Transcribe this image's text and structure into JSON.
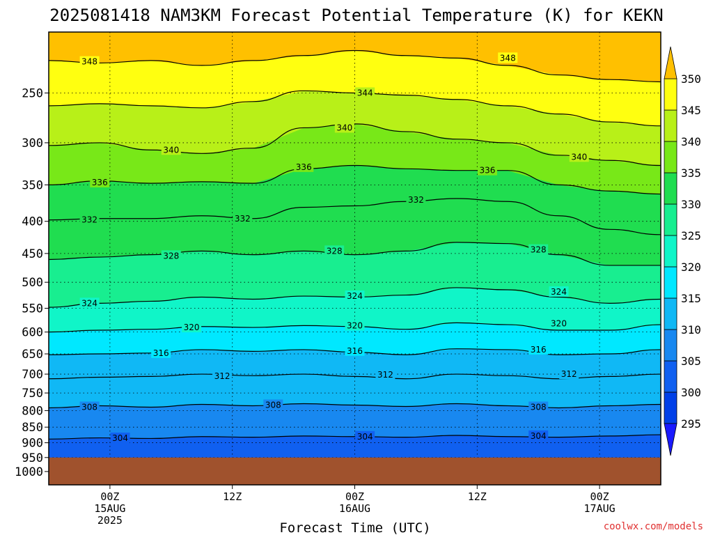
{
  "chart_data": {
    "type": "heatmap",
    "title": "2025081418 NAM3KM Forecast Potential Temperature (K) for KEKN",
    "xlabel": "Forecast Time (UTC)",
    "ylabel": "",
    "credit": "coolwx.com/models",
    "x_ticks": [
      {
        "hours": 6,
        "lines": [
          "00Z",
          "15AUG",
          "2025"
        ]
      },
      {
        "hours": 18,
        "lines": [
          "12Z"
        ]
      },
      {
        "hours": 30,
        "lines": [
          "00Z",
          "16AUG"
        ]
      },
      {
        "hours": 42,
        "lines": [
          "12Z"
        ]
      },
      {
        "hours": 54,
        "lines": [
          "00Z",
          "17AUG"
        ]
      }
    ],
    "x_range_hours": [
      0,
      60
    ],
    "y_ticks": [
      250,
      300,
      350,
      400,
      450,
      500,
      550,
      600,
      650,
      700,
      750,
      800,
      850,
      900,
      950,
      1000
    ],
    "y_scale": "log pressure (hPa), inverted",
    "y_range_hPa": [
      1050,
      200
    ],
    "ground_level_hPa": 950,
    "ground_color": "#a0522d",
    "colorbar": {
      "levels": [
        295,
        300,
        305,
        310,
        315,
        320,
        325,
        330,
        335,
        340,
        345,
        350
      ],
      "colors": [
        "#1a1aff",
        "#0040e8",
        "#1060f0",
        "#1888f0",
        "#10b8f5",
        "#00e8ff",
        "#10f5c8",
        "#18ee90",
        "#20dd50",
        "#78e818",
        "#b8f018",
        "#ffff10",
        "#ffc000"
      ]
    },
    "contours": [
      {
        "value": 304,
        "p": [
          888,
          884,
          886,
          880,
          882,
          878,
          880,
          882,
          876,
          880,
          882,
          878,
          874
        ]
      },
      {
        "value": 308,
        "p": [
          792,
          786,
          790,
          782,
          786,
          780,
          784,
          788,
          780,
          786,
          792,
          786,
          782
        ]
      },
      {
        "value": 312,
        "p": [
          712,
          708,
          706,
          700,
          704,
          700,
          706,
          712,
          700,
          704,
          712,
          706,
          700
        ]
      },
      {
        "value": 316,
        "p": [
          652,
          650,
          648,
          640,
          644,
          640,
          646,
          652,
          638,
          640,
          652,
          650,
          640
        ]
      },
      {
        "value": 320,
        "p": [
          600,
          596,
          594,
          588,
          590,
          586,
          588,
          594,
          580,
          584,
          596,
          596,
          584
        ]
      },
      {
        "value": 324,
        "p": [
          548,
          540,
          536,
          528,
          532,
          526,
          528,
          524,
          510,
          514,
          528,
          540,
          532
        ]
      },
      {
        "value": 328,
        "p": [
          460,
          456,
          452,
          446,
          452,
          446,
          452,
          446,
          432,
          434,
          452,
          470,
          470
        ]
      },
      {
        "value": 332,
        "p": [
          398,
          396,
          396,
          392,
          396,
          380,
          378,
          372,
          368,
          372,
          392,
          412,
          420
        ]
      },
      {
        "value": 336,
        "p": [
          350,
          345,
          348,
          346,
          348,
          330,
          326,
          330,
          332,
          332,
          350,
          358,
          362
        ]
      },
      {
        "value": 340,
        "p": [
          303,
          300,
          308,
          312,
          306,
          284,
          280,
          288,
          296,
          300,
          314,
          320,
          326
        ]
      },
      {
        "value": 344,
        "p": [
          262,
          260,
          262,
          264,
          258,
          248,
          250,
          252,
          256,
          262,
          270,
          278,
          282
        ]
      },
      {
        "value": 348,
        "p": [
          222,
          224,
          222,
          226,
          222,
          218,
          214,
          218,
          220,
          226,
          234,
          238,
          240
        ]
      }
    ],
    "contour_labels": [
      {
        "text": "348",
        "hours": 4,
        "p": 223
      },
      {
        "text": "348",
        "hours": 45,
        "p": 220
      },
      {
        "text": "344",
        "hours": 31,
        "p": 250
      },
      {
        "text": "340",
        "hours": 12,
        "p": 308
      },
      {
        "text": "340",
        "hours": 29,
        "p": 284
      },
      {
        "text": "340",
        "hours": 52,
        "p": 316
      },
      {
        "text": "336",
        "hours": 5,
        "p": 347
      },
      {
        "text": "336",
        "hours": 25,
        "p": 328
      },
      {
        "text": "336",
        "hours": 43,
        "p": 332
      },
      {
        "text": "332",
        "hours": 4,
        "p": 398
      },
      {
        "text": "332",
        "hours": 19,
        "p": 396
      },
      {
        "text": "332",
        "hours": 36,
        "p": 370
      },
      {
        "text": "328",
        "hours": 12,
        "p": 454
      },
      {
        "text": "328",
        "hours": 28,
        "p": 446
      },
      {
        "text": "328",
        "hours": 48,
        "p": 444
      },
      {
        "text": "324",
        "hours": 4,
        "p": 540
      },
      {
        "text": "324",
        "hours": 30,
        "p": 526
      },
      {
        "text": "324",
        "hours": 50,
        "p": 518
      },
      {
        "text": "320",
        "hours": 14,
        "p": 590
      },
      {
        "text": "320",
        "hours": 30,
        "p": 586
      },
      {
        "text": "320",
        "hours": 50,
        "p": 582
      },
      {
        "text": "316",
        "hours": 11,
        "p": 648
      },
      {
        "text": "316",
        "hours": 30,
        "p": 643
      },
      {
        "text": "316",
        "hours": 48,
        "p": 640
      },
      {
        "text": "312",
        "hours": 17,
        "p": 705
      },
      {
        "text": "312",
        "hours": 33,
        "p": 702
      },
      {
        "text": "312",
        "hours": 51,
        "p": 700
      },
      {
        "text": "308",
        "hours": 4,
        "p": 790
      },
      {
        "text": "308",
        "hours": 22,
        "p": 784
      },
      {
        "text": "308",
        "hours": 48,
        "p": 790
      },
      {
        "text": "304",
        "hours": 7,
        "p": 885
      },
      {
        "text": "304",
        "hours": 31,
        "p": 880
      },
      {
        "text": "304",
        "hours": 48,
        "p": 878
      }
    ]
  }
}
